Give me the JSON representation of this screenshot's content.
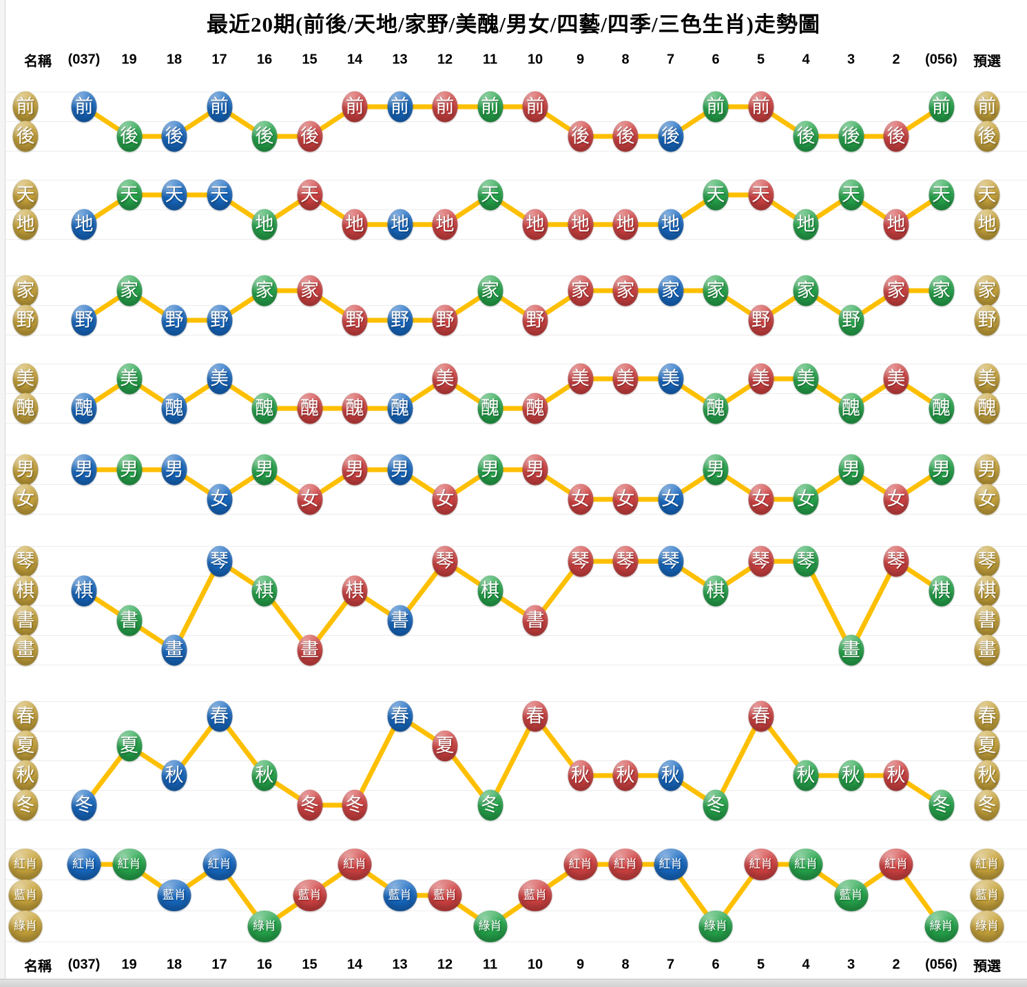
{
  "title": "最近20期(前後/天地/家野/美醜/男女/四藝/四季/三色生肖)走勢圖",
  "header": {
    "left_label": "名稱",
    "right_label": "預選"
  },
  "colors": {
    "blue": "#1769c2",
    "green": "#26a64c",
    "red": "#d14242",
    "gold": "#c9a53c",
    "line": "#fdbf00"
  },
  "chart_data": {
    "type": "line",
    "x_categories": [
      "(037)",
      "19",
      "18",
      "17",
      "16",
      "15",
      "14",
      "13",
      "12",
      "11",
      "10",
      "9",
      "8",
      "7",
      "6",
      "5",
      "4",
      "3",
      "2",
      "(056)"
    ],
    "point_colors_by_period": [
      "blue",
      "green",
      "blue",
      "blue",
      "green",
      "red",
      "red",
      "blue",
      "red",
      "green",
      "red",
      "red",
      "red",
      "blue",
      "green",
      "red",
      "green",
      "green",
      "red",
      "green"
    ],
    "sections": [
      {
        "name": "前後",
        "rows": [
          "前",
          "後"
        ],
        "values": [
          "前",
          "後",
          "後",
          "前",
          "後",
          "後",
          "前",
          "前",
          "前",
          "前",
          "前",
          "後",
          "後",
          "後",
          "前",
          "前",
          "後",
          "後",
          "後",
          "前"
        ]
      },
      {
        "name": "天地",
        "rows": [
          "天",
          "地"
        ],
        "values": [
          "地",
          "天",
          "天",
          "天",
          "地",
          "天",
          "地",
          "地",
          "地",
          "天",
          "地",
          "地",
          "地",
          "地",
          "天",
          "天",
          "地",
          "天",
          "地",
          "天"
        ]
      },
      {
        "name": "家野",
        "rows": [
          "家",
          "野"
        ],
        "values": [
          "野",
          "家",
          "野",
          "野",
          "家",
          "家",
          "野",
          "野",
          "野",
          "家",
          "野",
          "家",
          "家",
          "家",
          "家",
          "野",
          "家",
          "野",
          "家",
          "家"
        ]
      },
      {
        "name": "美醜",
        "rows": [
          "美",
          "醜"
        ],
        "values": [
          "醜",
          "美",
          "醜",
          "美",
          "醜",
          "醜",
          "醜",
          "醜",
          "美",
          "醜",
          "醜",
          "美",
          "美",
          "美",
          "醜",
          "美",
          "美",
          "醜",
          "美",
          "醜"
        ]
      },
      {
        "name": "男女",
        "rows": [
          "男",
          "女"
        ],
        "values": [
          "男",
          "男",
          "男",
          "女",
          "男",
          "女",
          "男",
          "男",
          "女",
          "男",
          "男",
          "女",
          "女",
          "女",
          "男",
          "女",
          "女",
          "男",
          "女",
          "男"
        ]
      },
      {
        "name": "四藝",
        "rows": [
          "琴",
          "棋",
          "書",
          "畫"
        ],
        "values": [
          "棋",
          "書",
          "畫",
          "琴",
          "棋",
          "畫",
          "棋",
          "書",
          "琴",
          "棋",
          "書",
          "琴",
          "琴",
          "琴",
          "棋",
          "琴",
          "琴",
          "畫",
          "琴",
          "棋"
        ]
      },
      {
        "name": "四季",
        "rows": [
          "春",
          "夏",
          "秋",
          "冬"
        ],
        "values": [
          "冬",
          "夏",
          "秋",
          "春",
          "秋",
          "冬",
          "冬",
          "春",
          "夏",
          "冬",
          "春",
          "秋",
          "秋",
          "秋",
          "冬",
          "春",
          "秋",
          "秋",
          "秋",
          "冬"
        ]
      },
      {
        "name": "三色生肖",
        "rows": [
          "紅肖",
          "藍肖",
          "綠肖"
        ],
        "values": [
          "紅肖",
          "紅肖",
          "藍肖",
          "紅肖",
          "綠肖",
          "藍肖",
          "紅肖",
          "藍肖",
          "藍肖",
          "綠肖",
          "藍肖",
          "紅肖",
          "紅肖",
          "紅肖",
          "綠肖",
          "紅肖",
          "紅肖",
          "藍肖",
          "紅肖",
          "綠肖"
        ]
      }
    ]
  }
}
